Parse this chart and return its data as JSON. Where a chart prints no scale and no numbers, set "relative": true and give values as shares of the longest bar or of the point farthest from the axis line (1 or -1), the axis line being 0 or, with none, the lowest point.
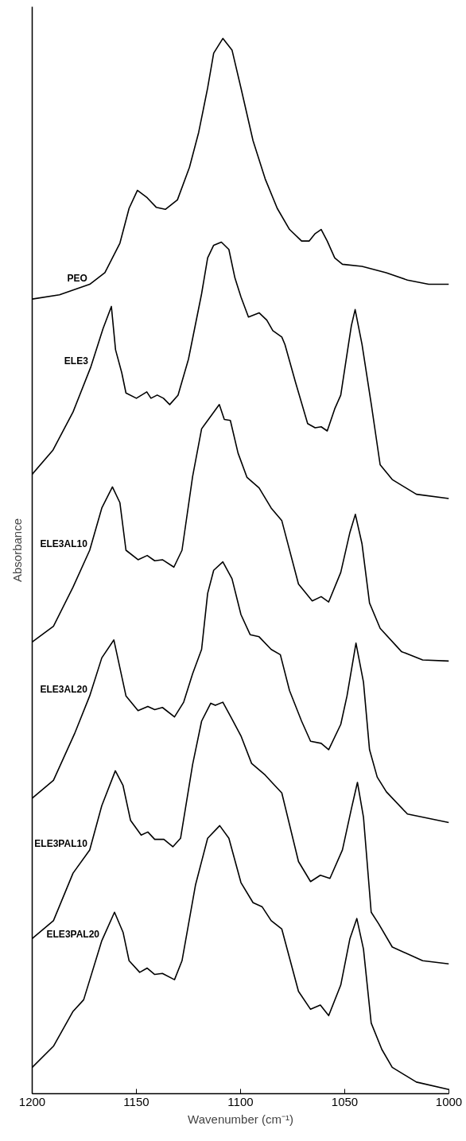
{
  "chart_data": {
    "type": "line",
    "relative": true,
    "xlabel": "Wavenumber (cm⁻¹)",
    "ylabel": "Absorbance",
    "xlim": [
      1200,
      1000
    ],
    "xticks": [
      1200,
      1150,
      1100,
      1050,
      1000
    ],
    "tick_labels": "x",
    "grid": false,
    "series": [
      {
        "name": "PEO",
        "color": "#000000",
        "x": [
          1200,
          1186.9,
          1172.4,
          1165.1,
          1157.9,
          1153.5,
          1149.5,
          1144.8,
          1140.5,
          1136.1,
          1130.3,
          1124.5,
          1120.1,
          1115.8,
          1112.9,
          1108.5,
          1104.1,
          1099.8,
          1094.0,
          1088.2,
          1082.4,
          1076.5,
          1070.7,
          1067.1,
          1064.2,
          1061.3,
          1058.4,
          1054.8,
          1051.1,
          1041.7,
          1030.1,
          1019.9,
          1009.7,
          1000
        ],
        "values": [
          0.753,
          0.757,
          0.767,
          0.778,
          0.806,
          0.839,
          0.856,
          0.849,
          0.84,
          0.838,
          0.847,
          0.878,
          0.911,
          0.953,
          0.986,
          1.0,
          0.989,
          0.953,
          0.903,
          0.867,
          0.839,
          0.819,
          0.808,
          0.808,
          0.815,
          0.819,
          0.808,
          0.792,
          0.786,
          0.784,
          0.778,
          0.771,
          0.767,
          0.767
        ]
      },
      {
        "name": "ELE3",
        "color": "#000000",
        "x": [
          1200,
          1190,
          1180.4,
          1172,
          1166,
          1162,
          1160,
          1157,
          1155,
          1150,
          1145,
          1143,
          1140,
          1137,
          1134,
          1130,
          1125,
          1118.7,
          1115.8,
          1112.9,
          1109.2,
          1105.6,
          1102.7,
          1099.8,
          1096.2,
          1091.1,
          1087.4,
          1084.5,
          1080.2,
          1078.7,
          1073.6,
          1067.8,
          1064.2,
          1061.3,
          1058.4,
          1054.8,
          1051.9,
          1048.2,
          1046.8,
          1045,
          1042.4,
          1041.7,
          1037.3,
          1033,
          1027.2,
          1015.6,
          1000
        ],
        "values": [
          0.587,
          0.61,
          0.646,
          0.688,
          0.725,
          0.746,
          0.705,
          0.683,
          0.664,
          0.659,
          0.665,
          0.659,
          0.662,
          0.659,
          0.653,
          0.662,
          0.696,
          0.758,
          0.792,
          0.804,
          0.807,
          0.8,
          0.773,
          0.755,
          0.736,
          0.74,
          0.733,
          0.723,
          0.717,
          0.71,
          0.674,
          0.635,
          0.631,
          0.632,
          0.628,
          0.649,
          0.662,
          0.71,
          0.728,
          0.743,
          0.717,
          0.71,
          0.654,
          0.596,
          0.582,
          0.568,
          0.564
        ]
      },
      {
        "name": "ELE3AL10",
        "color": "#000000",
        "x": [
          1200,
          1189.8,
          1180.4,
          1172.4,
          1166.6,
          1161.5,
          1157.9,
          1155.0,
          1149.2,
          1144.8,
          1141.2,
          1137.5,
          1132.0,
          1128.1,
          1123.0,
          1118.7,
          1114.3,
          1110.2,
          1107.8,
          1104.9,
          1101.2,
          1096.9,
          1091.1,
          1085.3,
          1080.2,
          1072.2,
          1065.6,
          1061.3,
          1057.7,
          1051.9,
          1047.5,
          1044.9,
          1041.7,
          1038.1,
          1033.0,
          1022.8,
          1012.6,
          1000
        ],
        "values": [
          0.428,
          0.443,
          0.48,
          0.515,
          0.555,
          0.575,
          0.56,
          0.515,
          0.506,
          0.51,
          0.505,
          0.506,
          0.499,
          0.515,
          0.585,
          0.63,
          0.642,
          0.653,
          0.639,
          0.638,
          0.607,
          0.584,
          0.574,
          0.555,
          0.543,
          0.483,
          0.467,
          0.471,
          0.466,
          0.494,
          0.532,
          0.549,
          0.521,
          0.465,
          0.441,
          0.419,
          0.411,
          0.41
        ]
      },
      {
        "name": "ELE3AL20",
        "color": "#000000",
        "x": [
          1200,
          1189.8,
          1179.7,
          1172.4,
          1166.6,
          1160.8,
          1155.0,
          1149.2,
          1144.5,
          1141.2,
          1137.5,
          1131.7,
          1127.3,
          1123.0,
          1118.7,
          1115.8,
          1112.9,
          1108.5,
          1104.1,
          1099.8,
          1095.4,
          1091.1,
          1085.3,
          1080.9,
          1076.5,
          1070.7,
          1066.4,
          1061.3,
          1057.7,
          1051.9,
          1048.9,
          1044.6,
          1041.0,
          1038.1,
          1034.4,
          1030.0,
          1019.9,
          1000
        ],
        "values": [
          0.28,
          0.297,
          0.341,
          0.377,
          0.413,
          0.43,
          0.377,
          0.363,
          0.367,
          0.364,
          0.366,
          0.357,
          0.371,
          0.398,
          0.421,
          0.474,
          0.496,
          0.504,
          0.488,
          0.454,
          0.435,
          0.433,
          0.421,
          0.416,
          0.382,
          0.353,
          0.334,
          0.332,
          0.326,
          0.35,
          0.377,
          0.427,
          0.39,
          0.326,
          0.3,
          0.286,
          0.265,
          0.257
        ]
      },
      {
        "name": "ELE3PAL10",
        "color": "#000000",
        "x": [
          1200,
          1189.8,
          1180.4,
          1172.4,
          1166.6,
          1160.1,
          1156.4,
          1152.8,
          1147.7,
          1144.5,
          1141.2,
          1136.8,
          1132.5,
          1128.8,
          1123.0,
          1118.7,
          1114.3,
          1112.1,
          1108.5,
          1104.1,
          1099.8,
          1094.7,
          1088.2,
          1084.5,
          1080.2,
          1072.2,
          1066.4,
          1061.7,
          1057.1,
          1051.1,
          1046.8,
          1043.9,
          1041.0,
          1037.3,
          1033.7,
          1027.2,
          1012.6,
          1000
        ],
        "values": [
          0.147,
          0.164,
          0.209,
          0.231,
          0.273,
          0.306,
          0.292,
          0.259,
          0.245,
          0.248,
          0.241,
          0.241,
          0.234,
          0.242,
          0.312,
          0.353,
          0.37,
          0.368,
          0.371,
          0.355,
          0.339,
          0.313,
          0.302,
          0.294,
          0.285,
          0.22,
          0.201,
          0.207,
          0.204,
          0.231,
          0.27,
          0.295,
          0.262,
          0.172,
          0.161,
          0.139,
          0.126,
          0.123
        ]
      },
      {
        "name": "ELE3PAL20",
        "color": "#000000",
        "x": [
          1200,
          1189.8,
          1180.4,
          1175.3,
          1166.6,
          1160.5,
          1156.4,
          1153.5,
          1148.4,
          1144.8,
          1141.2,
          1137.5,
          1131.7,
          1128.1,
          1121.6,
          1115.8,
          1110.0,
          1105.6,
          1099.8,
          1094.0,
          1089.6,
          1085.3,
          1080.2,
          1072.2,
          1066.4,
          1061.7,
          1057.7,
          1051.9,
          1047.5,
          1044.2,
          1041.0,
          1037.3,
          1032.2,
          1027.2,
          1015.6,
          1000
        ],
        "values": [
          0.025,
          0.045,
          0.078,
          0.089,
          0.145,
          0.172,
          0.153,
          0.126,
          0.115,
          0.119,
          0.113,
          0.114,
          0.108,
          0.126,
          0.198,
          0.242,
          0.254,
          0.242,
          0.2,
          0.181,
          0.177,
          0.164,
          0.156,
          0.097,
          0.08,
          0.084,
          0.074,
          0.103,
          0.147,
          0.166,
          0.137,
          0.067,
          0.042,
          0.025,
          0.011,
          0.004
        ]
      }
    ]
  }
}
